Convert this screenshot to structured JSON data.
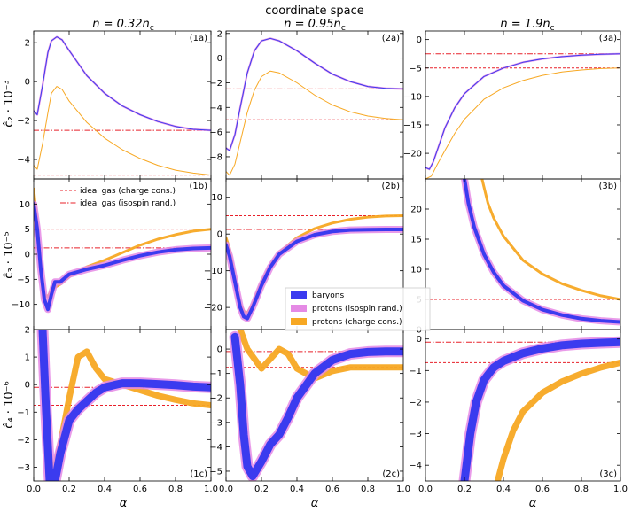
{
  "chart_data": {
    "type": "line",
    "title": "coordinate space",
    "xlabel": "α",
    "x_ticks": [
      "0.0",
      "0.2",
      "0.4",
      "0.6",
      "0.8",
      "1.0"
    ],
    "xlim": [
      0,
      1
    ],
    "columns": [
      {
        "label": "n = 0.32n",
        "sub": "c"
      },
      {
        "label": "n = 0.95n",
        "sub": "c"
      },
      {
        "label": "n = 1.9n",
        "sub": "c"
      }
    ],
    "rows": [
      {
        "ylabel": "ĉ₂ · 10⁻³"
      },
      {
        "ylabel": "ĉ₃ · 10⁻⁵"
      },
      {
        "ylabel": "ĉ₄ · 10⁻⁶"
      }
    ],
    "colors": {
      "baryons": "#3b3bef",
      "protons_isospin": "#e58ae5",
      "protons_charge": "#f7a823",
      "ideal_gas": "#e8202a"
    },
    "legend_ideal": [
      "ideal gas (charge cons.)",
      "ideal gas (isospin rand.)"
    ],
    "legend_bands": [
      "baryons",
      "protons (isospin rand.)",
      "protons (charge cons.)"
    ],
    "panels": [
      {
        "tag": "(1a)",
        "ylim": [
          -5,
          2.6
        ],
        "yticks": [
          -4,
          -2,
          0,
          2
        ],
        "ideal_charge": -4.8,
        "ideal_isospin": -2.5,
        "baryons": [
          [
            0,
            -1.5
          ],
          [
            0.02,
            -1.7
          ],
          [
            0.05,
            -0.2
          ],
          [
            0.08,
            1.5
          ],
          [
            0.1,
            2.1
          ],
          [
            0.13,
            2.3
          ],
          [
            0.16,
            2.15
          ],
          [
            0.2,
            1.6
          ],
          [
            0.3,
            0.3
          ],
          [
            0.4,
            -0.6
          ],
          [
            0.5,
            -1.25
          ],
          [
            0.6,
            -1.7
          ],
          [
            0.7,
            -2.05
          ],
          [
            0.8,
            -2.3
          ],
          [
            0.9,
            -2.45
          ],
          [
            1.0,
            -2.5
          ]
        ],
        "charge": [
          [
            0,
            -4.3
          ],
          [
            0.02,
            -4.5
          ],
          [
            0.05,
            -3.2
          ],
          [
            0.08,
            -1.6
          ],
          [
            0.1,
            -0.6
          ],
          [
            0.13,
            -0.25
          ],
          [
            0.16,
            -0.4
          ],
          [
            0.2,
            -1.0
          ],
          [
            0.3,
            -2.1
          ],
          [
            0.4,
            -2.9
          ],
          [
            0.5,
            -3.5
          ],
          [
            0.6,
            -3.95
          ],
          [
            0.7,
            -4.3
          ],
          [
            0.8,
            -4.55
          ],
          [
            0.9,
            -4.7
          ],
          [
            1.0,
            -4.8
          ]
        ]
      },
      {
        "tag": "(2a)",
        "ylim": [
          -9.8,
          2.2
        ],
        "yticks": [
          -8,
          -6,
          -4,
          -2,
          0,
          2
        ],
        "ideal_charge": -5.0,
        "ideal_isospin": -2.5,
        "baryons": [
          [
            0,
            -7.3
          ],
          [
            0.02,
            -7.5
          ],
          [
            0.05,
            -6.2
          ],
          [
            0.08,
            -4.0
          ],
          [
            0.12,
            -1.2
          ],
          [
            0.16,
            0.6
          ],
          [
            0.2,
            1.4
          ],
          [
            0.25,
            1.6
          ],
          [
            0.3,
            1.4
          ],
          [
            0.4,
            0.6
          ],
          [
            0.5,
            -0.4
          ],
          [
            0.6,
            -1.3
          ],
          [
            0.7,
            -1.9
          ],
          [
            0.8,
            -2.3
          ],
          [
            0.9,
            -2.45
          ],
          [
            1.0,
            -2.5
          ]
        ],
        "charge": [
          [
            0,
            -9.2
          ],
          [
            0.02,
            -9.5
          ],
          [
            0.05,
            -8.6
          ],
          [
            0.08,
            -6.8
          ],
          [
            0.12,
            -4.4
          ],
          [
            0.16,
            -2.6
          ],
          [
            0.2,
            -1.5
          ],
          [
            0.25,
            -1.05
          ],
          [
            0.3,
            -1.2
          ],
          [
            0.4,
            -2.0
          ],
          [
            0.5,
            -3.0
          ],
          [
            0.6,
            -3.8
          ],
          [
            0.7,
            -4.35
          ],
          [
            0.8,
            -4.7
          ],
          [
            0.9,
            -4.9
          ],
          [
            1.0,
            -5.0
          ]
        ]
      },
      {
        "tag": "(3a)",
        "ylim": [
          -24.5,
          1.5
        ],
        "yticks": [
          -20,
          -15,
          -10,
          -5,
          0
        ],
        "ideal_charge": -5.0,
        "ideal_isospin": -2.5,
        "baryons": [
          [
            0,
            -22.5
          ],
          [
            0.02,
            -22.8
          ],
          [
            0.04,
            -21.5
          ],
          [
            0.07,
            -18.5
          ],
          [
            0.1,
            -15.5
          ],
          [
            0.15,
            -12.0
          ],
          [
            0.2,
            -9.5
          ],
          [
            0.3,
            -6.5
          ],
          [
            0.4,
            -5.0
          ],
          [
            0.5,
            -4.0
          ],
          [
            0.6,
            -3.4
          ],
          [
            0.7,
            -3.0
          ],
          [
            0.8,
            -2.75
          ],
          [
            0.9,
            -2.6
          ],
          [
            1.0,
            -2.5
          ]
        ],
        "charge": [
          [
            0,
            -24.5
          ],
          [
            0.03,
            -24.0
          ],
          [
            0.06,
            -22.0
          ],
          [
            0.1,
            -19.5
          ],
          [
            0.15,
            -16.5
          ],
          [
            0.2,
            -14.0
          ],
          [
            0.3,
            -10.5
          ],
          [
            0.4,
            -8.5
          ],
          [
            0.5,
            -7.2
          ],
          [
            0.6,
            -6.3
          ],
          [
            0.7,
            -5.7
          ],
          [
            0.8,
            -5.35
          ],
          [
            0.9,
            -5.1
          ],
          [
            1.0,
            -5.0
          ]
        ]
      },
      {
        "tag": "(1b)",
        "ylim": [
          -15,
          15
        ],
        "yticks": [
          -10,
          -5,
          0,
          5,
          10
        ],
        "ideal_charge": 5.0,
        "ideal_isospin": 1.25,
        "baryons": [
          [
            0,
            10
          ],
          [
            0.02,
            5
          ],
          [
            0.04,
            -3
          ],
          [
            0.06,
            -9
          ],
          [
            0.08,
            -11
          ],
          [
            0.1,
            -8
          ],
          [
            0.12,
            -5.5
          ],
          [
            0.15,
            -5.5
          ],
          [
            0.2,
            -4
          ],
          [
            0.3,
            -3
          ],
          [
            0.4,
            -2.2
          ],
          [
            0.5,
            -1.2
          ],
          [
            0.6,
            -0.3
          ],
          [
            0.7,
            0.4
          ],
          [
            0.8,
            0.9
          ],
          [
            0.9,
            1.15
          ],
          [
            1.0,
            1.25
          ]
        ],
        "charge": [
          [
            0,
            13
          ],
          [
            0.02,
            6
          ],
          [
            0.04,
            -4
          ],
          [
            0.06,
            -8
          ],
          [
            0.08,
            -8.5
          ],
          [
            0.1,
            -7
          ],
          [
            0.15,
            -6
          ],
          [
            0.2,
            -4.5
          ],
          [
            0.3,
            -2.5
          ],
          [
            0.4,
            -1.2
          ],
          [
            0.5,
            0.3
          ],
          [
            0.6,
            1.8
          ],
          [
            0.7,
            3.0
          ],
          [
            0.8,
            3.9
          ],
          [
            0.9,
            4.6
          ],
          [
            1.0,
            5.0
          ]
        ]
      },
      {
        "tag": "(2b)",
        "ylim": [
          -26,
          15
        ],
        "yticks": [
          -20,
          -10,
          0,
          10
        ],
        "ideal_charge": 5.0,
        "ideal_isospin": 1.25,
        "baryons": [
          [
            0,
            -3
          ],
          [
            0.02,
            -6
          ],
          [
            0.05,
            -13
          ],
          [
            0.08,
            -20
          ],
          [
            0.1,
            -22.5
          ],
          [
            0.12,
            -23
          ],
          [
            0.15,
            -20
          ],
          [
            0.2,
            -14
          ],
          [
            0.25,
            -9
          ],
          [
            0.3,
            -5.5
          ],
          [
            0.4,
            -2
          ],
          [
            0.5,
            -0.2
          ],
          [
            0.6,
            0.7
          ],
          [
            0.7,
            1.1
          ],
          [
            0.8,
            1.2
          ],
          [
            0.9,
            1.25
          ],
          [
            1.0,
            1.25
          ]
        ],
        "charge": [
          [
            0,
            -1
          ],
          [
            0.02,
            -4
          ],
          [
            0.05,
            -12
          ],
          [
            0.08,
            -19
          ],
          [
            0.1,
            -21
          ],
          [
            0.12,
            -21.5
          ],
          [
            0.15,
            -19
          ],
          [
            0.2,
            -13
          ],
          [
            0.25,
            -8.5
          ],
          [
            0.3,
            -5
          ],
          [
            0.4,
            -1
          ],
          [
            0.5,
            1.5
          ],
          [
            0.6,
            3.0
          ],
          [
            0.7,
            4.0
          ],
          [
            0.8,
            4.6
          ],
          [
            0.9,
            4.9
          ],
          [
            1.0,
            5.0
          ]
        ]
      },
      {
        "tag": "(3b)",
        "ylim": [
          0,
          25
        ],
        "yticks": [
          0,
          5,
          10,
          15,
          20
        ],
        "ideal_charge": 5.0,
        "ideal_isospin": 1.25,
        "baryons": [
          [
            0.2,
            25
          ],
          [
            0.22,
            21
          ],
          [
            0.25,
            17
          ],
          [
            0.3,
            12.5
          ],
          [
            0.35,
            9.5
          ],
          [
            0.4,
            7.3
          ],
          [
            0.5,
            4.8
          ],
          [
            0.6,
            3.3
          ],
          [
            0.7,
            2.4
          ],
          [
            0.8,
            1.8
          ],
          [
            0.9,
            1.45
          ],
          [
            1.0,
            1.25
          ]
        ],
        "charge": [
          [
            0.29,
            25
          ],
          [
            0.32,
            21
          ],
          [
            0.35,
            18.5
          ],
          [
            0.4,
            15.5
          ],
          [
            0.5,
            11.5
          ],
          [
            0.6,
            9.2
          ],
          [
            0.7,
            7.6
          ],
          [
            0.8,
            6.5
          ],
          [
            0.9,
            5.6
          ],
          [
            1.0,
            5.0
          ]
        ]
      },
      {
        "tag": "(1c)",
        "ylim": [
          -3.5,
          2
        ],
        "yticks": [
          -3,
          -2,
          -1,
          0,
          1,
          2
        ],
        "ideal_charge": -0.75,
        "ideal_isospin": -0.1,
        "baryons": [
          [
            0.05,
            2
          ],
          [
            0.07,
            -1
          ],
          [
            0.09,
            -3.5
          ],
          [
            0.12,
            -3.5
          ],
          [
            0.15,
            -2.5
          ],
          [
            0.2,
            -1.3
          ],
          [
            0.25,
            -0.9
          ],
          [
            0.3,
            -0.6
          ],
          [
            0.35,
            -0.3
          ],
          [
            0.4,
            -0.1
          ],
          [
            0.5,
            0.05
          ],
          [
            0.6,
            0.05
          ],
          [
            0.7,
            0.02
          ],
          [
            0.8,
            -0.02
          ],
          [
            0.9,
            -0.07
          ],
          [
            1.0,
            -0.1
          ]
        ],
        "charge": [
          [
            0.05,
            2
          ],
          [
            0.07,
            -1
          ],
          [
            0.1,
            -3.5
          ],
          [
            0.14,
            -2.5
          ],
          [
            0.2,
            -0.5
          ],
          [
            0.25,
            1.0
          ],
          [
            0.3,
            1.2
          ],
          [
            0.35,
            0.6
          ],
          [
            0.4,
            0.2
          ],
          [
            0.5,
            0.0
          ],
          [
            0.6,
            -0.2
          ],
          [
            0.7,
            -0.4
          ],
          [
            0.8,
            -0.55
          ],
          [
            0.9,
            -0.68
          ],
          [
            1.0,
            -0.75
          ]
        ]
      },
      {
        "tag": "(2c)",
        "ylim": [
          -5.4,
          0.8
        ],
        "yticks": [
          -5,
          -4,
          -3,
          -2,
          -1,
          0
        ],
        "ideal_charge": -0.75,
        "ideal_isospin": -0.1,
        "baryons": [
          [
            0.05,
            0.5
          ],
          [
            0.08,
            -1.5
          ],
          [
            0.1,
            -3.5
          ],
          [
            0.12,
            -4.8
          ],
          [
            0.15,
            -5.2
          ],
          [
            0.2,
            -4.6
          ],
          [
            0.25,
            -3.9
          ],
          [
            0.3,
            -3.5
          ],
          [
            0.35,
            -2.8
          ],
          [
            0.4,
            -2.0
          ],
          [
            0.5,
            -1.0
          ],
          [
            0.6,
            -0.45
          ],
          [
            0.7,
            -0.2
          ],
          [
            0.8,
            -0.12
          ],
          [
            0.9,
            -0.1
          ],
          [
            1.0,
            -0.1
          ]
        ],
        "charge": [
          [
            0.08,
            0.8
          ],
          [
            0.12,
            0
          ],
          [
            0.2,
            -0.8
          ],
          [
            0.3,
            0.0
          ],
          [
            0.35,
            -0.2
          ],
          [
            0.4,
            -0.8
          ],
          [
            0.5,
            -1.2
          ],
          [
            0.6,
            -0.9
          ],
          [
            0.7,
            -0.75
          ],
          [
            0.8,
            -0.75
          ],
          [
            0.9,
            -0.75
          ],
          [
            1.0,
            -0.75
          ]
        ]
      },
      {
        "tag": "(3c)",
        "ylim": [
          -4.5,
          0.3
        ],
        "yticks": [
          -4,
          -3,
          -2,
          -1,
          0
        ],
        "ideal_charge": -0.75,
        "ideal_isospin": -0.1,
        "baryons": [
          [
            0.2,
            -4.5
          ],
          [
            0.23,
            -3.0
          ],
          [
            0.26,
            -2.0
          ],
          [
            0.3,
            -1.3
          ],
          [
            0.35,
            -0.9
          ],
          [
            0.4,
            -0.7
          ],
          [
            0.5,
            -0.45
          ],
          [
            0.6,
            -0.3
          ],
          [
            0.7,
            -0.2
          ],
          [
            0.8,
            -0.15
          ],
          [
            0.9,
            -0.12
          ],
          [
            1.0,
            -0.1
          ]
        ],
        "charge": [
          [
            0.37,
            -4.5
          ],
          [
            0.4,
            -3.8
          ],
          [
            0.45,
            -2.9
          ],
          [
            0.5,
            -2.3
          ],
          [
            0.6,
            -1.7
          ],
          [
            0.7,
            -1.35
          ],
          [
            0.8,
            -1.1
          ],
          [
            0.9,
            -0.9
          ],
          [
            1.0,
            -0.75
          ]
        ]
      }
    ]
  }
}
